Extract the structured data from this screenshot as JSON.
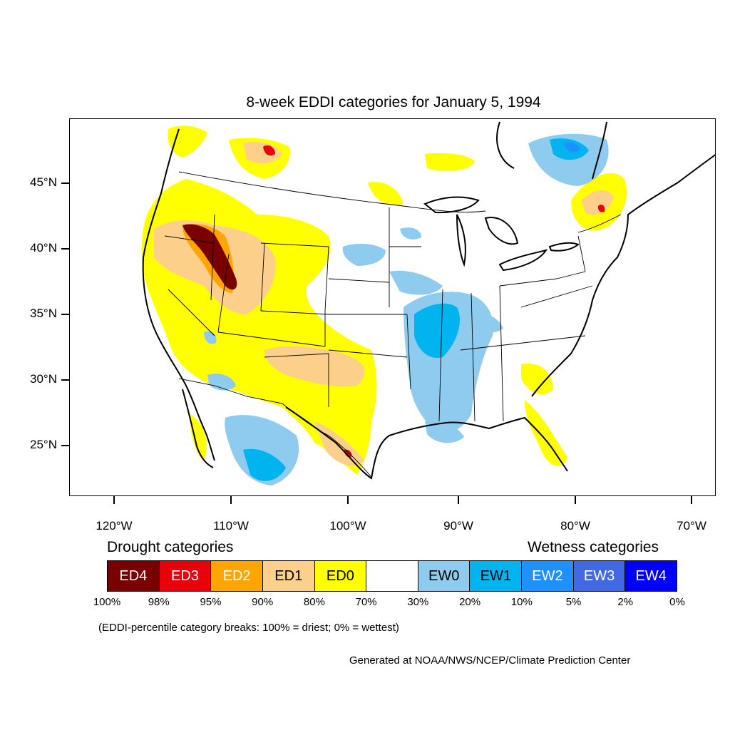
{
  "title": "8-week EDDI categories for January 5, 1994",
  "axes": {
    "lat_labels": [
      "45°N",
      "40°N",
      "35°N",
      "30°N",
      "25°N"
    ],
    "lon_labels": [
      "120°W",
      "110°W",
      "100°W",
      "90°W",
      "80°W",
      "70°W"
    ]
  },
  "legend": {
    "drought_heading": "Drought categories",
    "wetness_heading": "Wetness categories",
    "categories": [
      {
        "label": "ED4",
        "color": "#7a0000",
        "text_color": "#ffffff"
      },
      {
        "label": "ED3",
        "color": "#e8000b",
        "text_color": "#ffffff"
      },
      {
        "label": "ED2",
        "color": "#ffa500",
        "text_color": "#ffffff"
      },
      {
        "label": "ED1",
        "color": "#fcd08a",
        "text_color": "#000000"
      },
      {
        "label": "ED0",
        "color": "#ffff00",
        "text_color": "#000000"
      },
      {
        "label": "",
        "color": "#ffffff",
        "text_color": "#000000"
      },
      {
        "label": "EW0",
        "color": "#8ecbee",
        "text_color": "#000000"
      },
      {
        "label": "EW1",
        "color": "#00b4f0",
        "text_color": "#000000"
      },
      {
        "label": "EW2",
        "color": "#1e90ff",
        "text_color": "#ffffff"
      },
      {
        "label": "EW3",
        "color": "#4169e1",
        "text_color": "#ffffff"
      },
      {
        "label": "EW4",
        "color": "#0000ff",
        "text_color": "#ffffff"
      }
    ],
    "breaks": [
      "100%",
      "98%",
      "95%",
      "90%",
      "80%",
      "70%",
      "30%",
      "20%",
      "10%",
      "5%",
      "2%",
      "0%"
    ]
  },
  "note": "(EDDI-percentile category breaks: 100% = driest; 0% = wettest)",
  "credit": "Generated at NOAA/NWS/NCEP/Climate Prediction Center"
}
